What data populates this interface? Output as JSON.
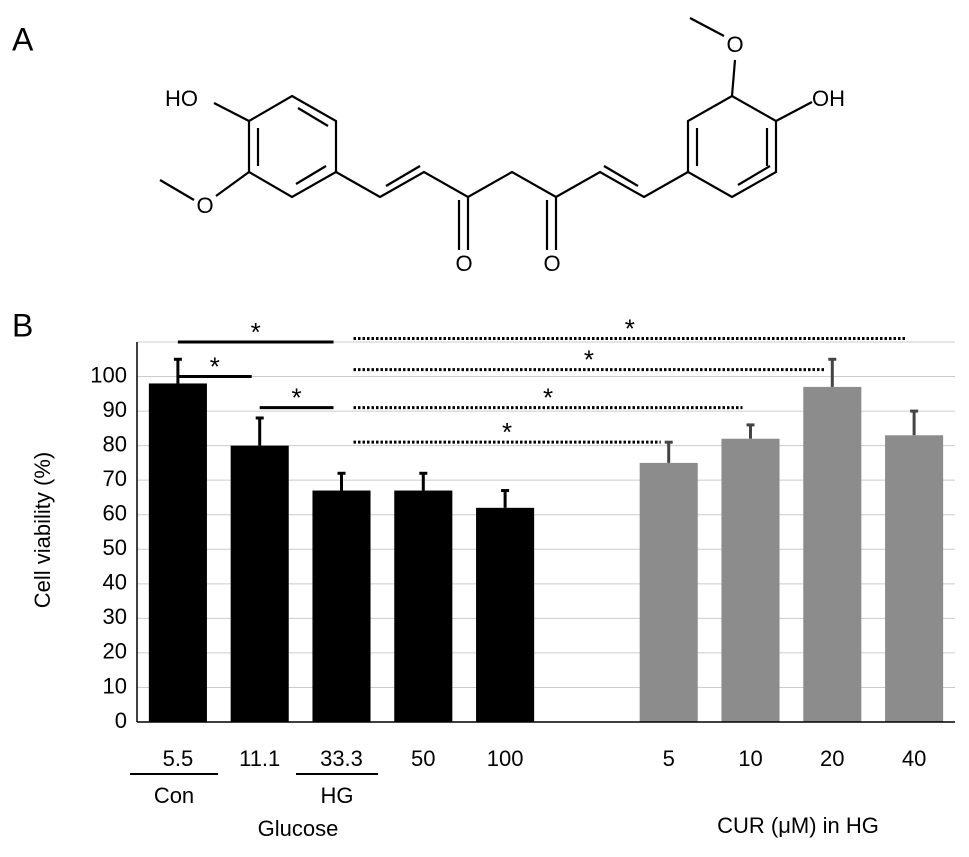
{
  "panels": {
    "a": "A",
    "b": "B"
  },
  "structure": {
    "atoms": [
      "HO",
      "OH",
      "O",
      "O"
    ]
  },
  "chart_data": {
    "type": "bar",
    "ylabel": "Cell viability (%)",
    "categories": [
      "5.5",
      "11.1",
      "33.3",
      "50",
      "100",
      null,
      "5",
      "10",
      "20",
      "40"
    ],
    "values": [
      98,
      80,
      67,
      67,
      62,
      null,
      75,
      82,
      97,
      83
    ],
    "errors": [
      7,
      8,
      5,
      5,
      5,
      null,
      6,
      4,
      8,
      7
    ],
    "colors": [
      "#000000",
      "#000000",
      "#000000",
      "#000000",
      "#000000",
      null,
      "#8c8c8c",
      "#8c8c8c",
      "#8c8c8c",
      "#8c8c8c"
    ],
    "ylim": [
      0,
      110
    ],
    "yticks": [
      0,
      10,
      20,
      30,
      40,
      50,
      60,
      70,
      80,
      90,
      100
    ],
    "grid": true,
    "sublabels": [
      "Con",
      "HG"
    ],
    "groups": [
      "Glucose",
      "CUR (μM) in HG"
    ],
    "significance": [
      {
        "from": 0,
        "to": 2,
        "y": 110,
        "label": "*",
        "style": "solid"
      },
      {
        "from": 2,
        "to": 9,
        "y": 111,
        "label": "*",
        "style": "dotted"
      },
      {
        "from": 0,
        "to": 1,
        "y": 100,
        "label": "*",
        "style": "solid"
      },
      {
        "from": 2,
        "to": 8,
        "y": 102,
        "label": "*",
        "style": "dotted"
      },
      {
        "from": 1,
        "to": 2,
        "y": 91,
        "label": "*",
        "style": "solid"
      },
      {
        "from": 2,
        "to": 7,
        "y": 91,
        "label": "*",
        "style": "dotted"
      },
      {
        "from": 2,
        "to": 6,
        "y": 81,
        "label": "*",
        "style": "dotted"
      }
    ]
  }
}
